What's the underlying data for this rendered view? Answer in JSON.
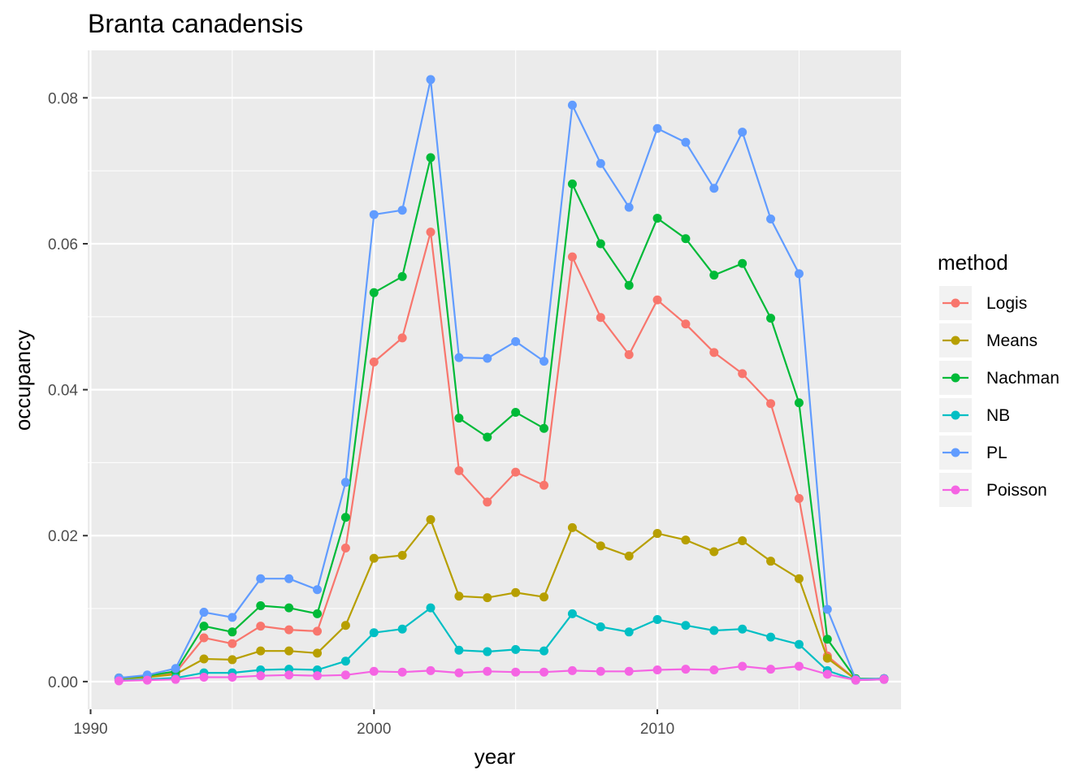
{
  "chart_data": {
    "type": "line",
    "title": "Branta canadensis",
    "xlabel": "year",
    "ylabel": "occupancy",
    "xlim": [
      1989.9,
      2018.6
    ],
    "ylim": [
      -0.0038,
      0.0865
    ],
    "x_ticks": [
      1990,
      2000,
      2010
    ],
    "y_ticks": [
      0.0,
      0.02,
      0.04,
      0.06,
      0.08
    ],
    "y_tick_labels": [
      "0.00",
      "0.02",
      "0.04",
      "0.06",
      "0.08"
    ],
    "grid": true,
    "legend": {
      "title": "method",
      "placement": "right"
    },
    "x": [
      1991,
      1992,
      1993,
      1994,
      1995,
      1996,
      1997,
      1998,
      1999,
      2000,
      2001,
      2002,
      2003,
      2004,
      2005,
      2006,
      2007,
      2008,
      2009,
      2010,
      2011,
      2012,
      2013,
      2014,
      2015,
      2016,
      2017,
      2018
    ],
    "series": [
      {
        "name": "Logis",
        "color": "#F8766D",
        "values": [
          0.0005,
          0.0007,
          0.0012,
          0.006,
          0.0052,
          0.0076,
          0.0071,
          0.0069,
          0.0183,
          0.0438,
          0.0471,
          0.0616,
          0.0289,
          0.0246,
          0.0287,
          0.0269,
          0.0582,
          0.0499,
          0.0448,
          0.0523,
          0.049,
          0.0451,
          0.0422,
          0.0381,
          0.0251,
          0.0035,
          0.0003,
          0.0004
        ]
      },
      {
        "name": "Means",
        "color": "#B79F00",
        "values": [
          0.0004,
          0.0006,
          0.001,
          0.0031,
          0.003,
          0.0042,
          0.0042,
          0.0039,
          0.0077,
          0.0169,
          0.0173,
          0.0222,
          0.0117,
          0.0115,
          0.0122,
          0.0116,
          0.0211,
          0.0186,
          0.0172,
          0.0203,
          0.0194,
          0.0178,
          0.0193,
          0.0165,
          0.0141,
          0.0032,
          0.0003,
          0.0004
        ]
      },
      {
        "name": "Nachman",
        "color": "#00BA38",
        "values": [
          0.0005,
          0.0008,
          0.0014,
          0.0076,
          0.0068,
          0.0104,
          0.0101,
          0.0093,
          0.0225,
          0.0533,
          0.0555,
          0.0718,
          0.0361,
          0.0335,
          0.0369,
          0.0347,
          0.0682,
          0.06,
          0.0543,
          0.0635,
          0.0607,
          0.0557,
          0.0573,
          0.0498,
          0.0382,
          0.0058,
          0.0004,
          0.0004
        ]
      },
      {
        "name": "NB",
        "color": "#00BFC4",
        "values": [
          0.0002,
          0.0003,
          0.0005,
          0.0012,
          0.0012,
          0.0016,
          0.0017,
          0.0016,
          0.0028,
          0.0067,
          0.0072,
          0.0101,
          0.0043,
          0.0041,
          0.0044,
          0.0042,
          0.0093,
          0.0075,
          0.0068,
          0.0085,
          0.0077,
          0.007,
          0.0072,
          0.0061,
          0.0051,
          0.0015,
          0.0002,
          0.0003
        ]
      },
      {
        "name": "PL",
        "color": "#619CFF",
        "values": [
          0.0005,
          0.0009,
          0.0018,
          0.0095,
          0.0088,
          0.0141,
          0.0141,
          0.0126,
          0.0273,
          0.064,
          0.0646,
          0.0825,
          0.0444,
          0.0443,
          0.0466,
          0.0439,
          0.079,
          0.071,
          0.065,
          0.0758,
          0.0739,
          0.0676,
          0.0753,
          0.0634,
          0.0559,
          0.0099,
          0.0003,
          0.0004
        ]
      },
      {
        "name": "Poisson",
        "color": "#F564E3",
        "values": [
          0.0001,
          0.0002,
          0.0003,
          0.0006,
          0.0006,
          0.0008,
          0.0009,
          0.0008,
          0.0009,
          0.0014,
          0.0013,
          0.0015,
          0.0012,
          0.0014,
          0.0013,
          0.0013,
          0.0015,
          0.0014,
          0.0014,
          0.0016,
          0.0017,
          0.0016,
          0.0021,
          0.0017,
          0.0021,
          0.001,
          0.0002,
          0.0003
        ]
      }
    ]
  }
}
